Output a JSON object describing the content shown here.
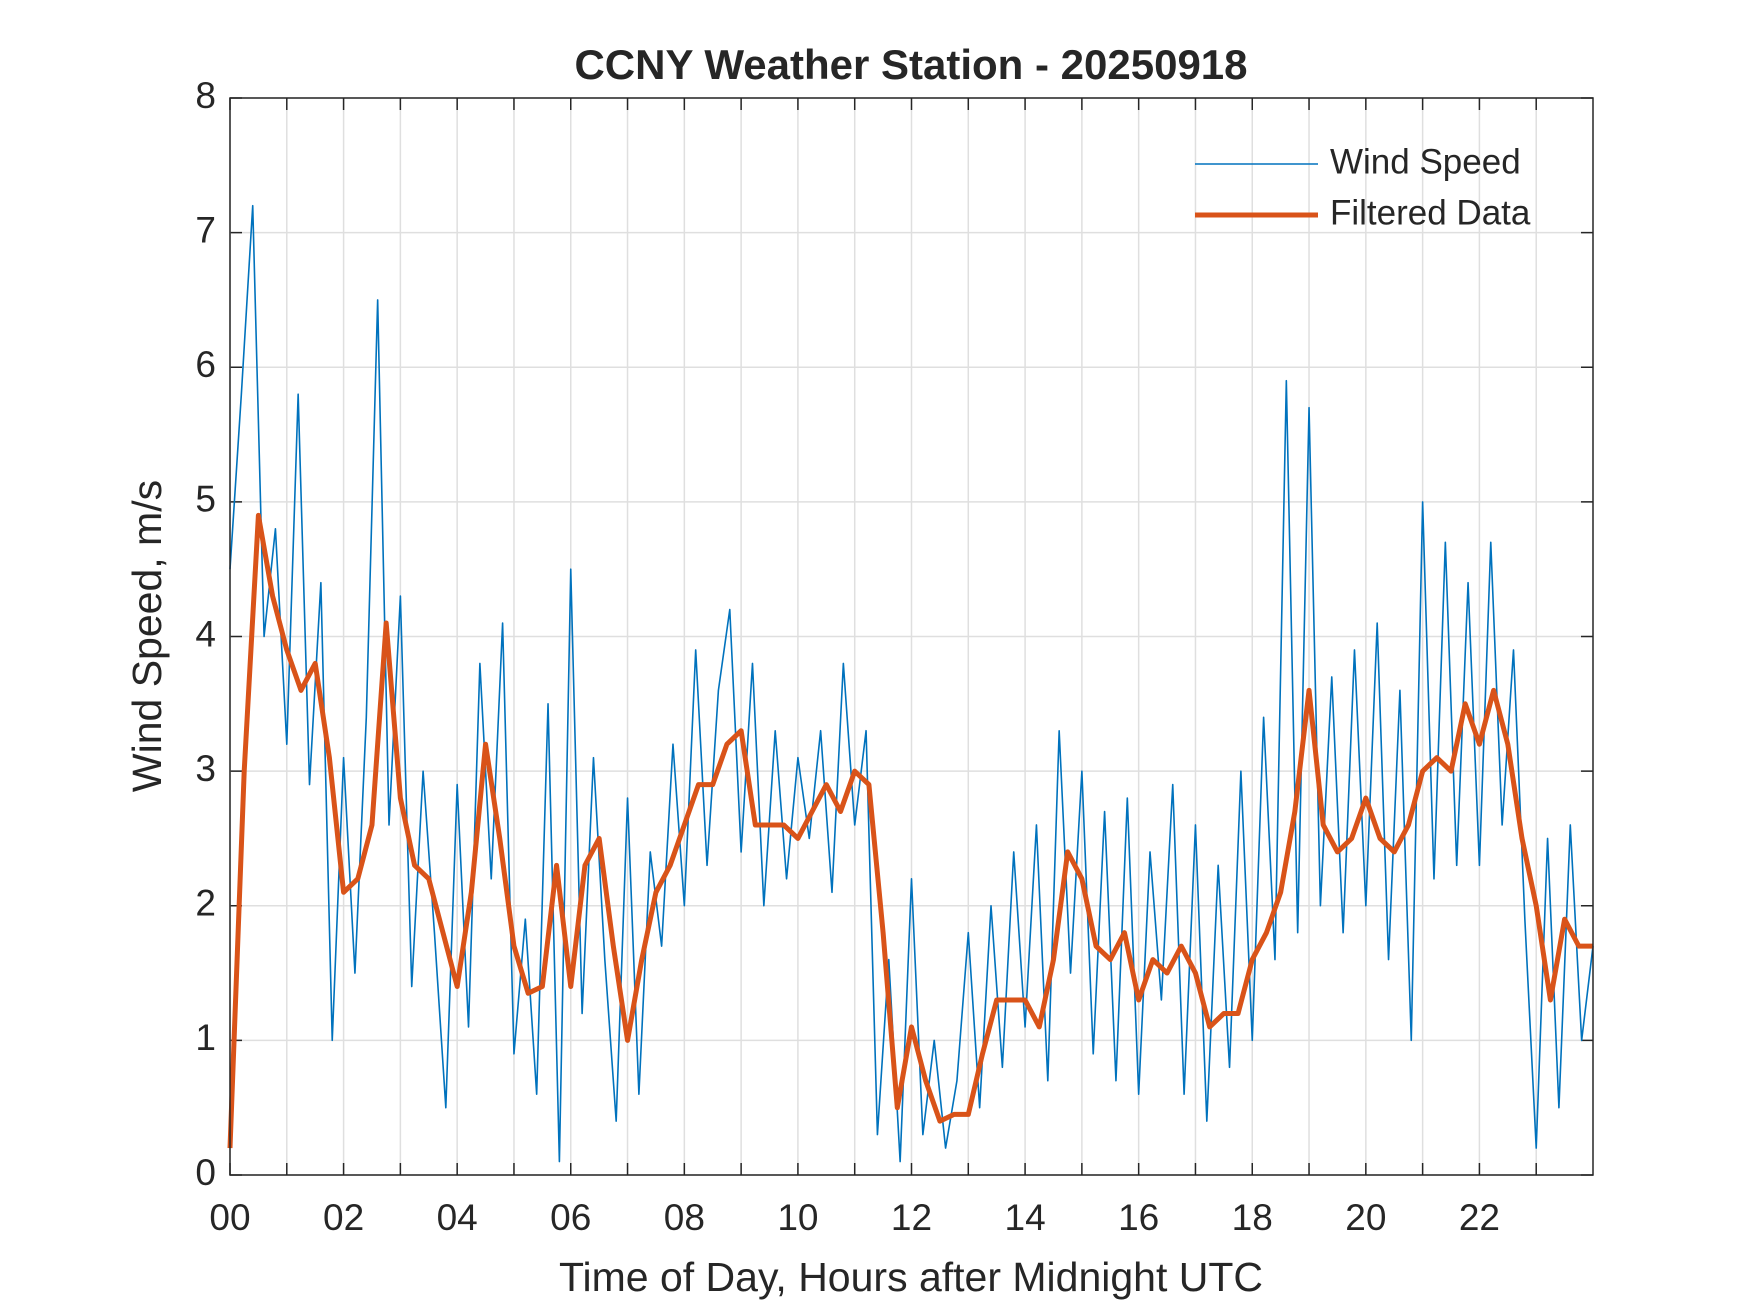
{
  "chart_data": {
    "type": "line",
    "title": "CCNY Weather Station - 20250918",
    "xlabel": "Time of Day, Hours after Midnight UTC",
    "ylabel": "Wind Speed, m/s",
    "xlim": [
      0,
      24
    ],
    "ylim": [
      0,
      8
    ],
    "xticks": [
      {
        "value": 0,
        "label": "00"
      },
      {
        "value": 2,
        "label": "02"
      },
      {
        "value": 4,
        "label": "04"
      },
      {
        "value": 6,
        "label": "06"
      },
      {
        "value": 8,
        "label": "08"
      },
      10,
      12,
      14,
      16,
      18,
      20,
      22
    ],
    "xminorticks": [
      1,
      3,
      5,
      7,
      9,
      11,
      13,
      15,
      17,
      19,
      21,
      23
    ],
    "yticks": [
      0,
      1,
      2,
      3,
      4,
      5,
      6,
      7,
      8
    ],
    "grid": true,
    "legend": "northeast",
    "series": [
      {
        "name": "Wind Speed",
        "color": "#0072BD",
        "x": [
          0,
          0.2,
          0.4,
          0.6,
          0.8,
          1,
          1.2,
          1.4,
          1.6,
          1.8,
          2,
          2.2,
          2.4,
          2.6,
          2.8,
          3,
          3.2,
          3.4,
          3.6,
          3.8,
          4,
          4.2,
          4.4,
          4.6,
          4.8,
          5,
          5.2,
          5.4,
          5.6,
          5.8,
          6,
          6.2,
          6.4,
          6.6,
          6.8,
          7,
          7.2,
          7.4,
          7.6,
          7.8,
          8,
          8.2,
          8.4,
          8.6,
          8.8,
          9,
          9.2,
          9.4,
          9.6,
          9.8,
          10,
          10.2,
          10.4,
          10.6,
          10.8,
          11,
          11.2,
          11.4,
          11.6,
          11.8,
          12,
          12.2,
          12.4,
          12.6,
          12.8,
          13,
          13.2,
          13.4,
          13.6,
          13.8,
          14,
          14.2,
          14.4,
          14.6,
          14.8,
          15,
          15.2,
          15.4,
          15.6,
          15.8,
          16,
          16.2,
          16.4,
          16.6,
          16.8,
          17,
          17.2,
          17.4,
          17.6,
          17.8,
          18,
          18.2,
          18.4,
          18.6,
          18.8,
          19,
          19.2,
          19.4,
          19.6,
          19.8,
          20,
          20.2,
          20.4,
          20.6,
          20.8,
          21,
          21.2,
          21.4,
          21.6,
          21.8,
          22,
          22.2,
          22.4,
          22.6,
          22.8,
          23,
          23.2,
          23.4,
          23.6,
          23.8,
          24
        ],
        "values": [
          4.5,
          5.8,
          7.2,
          4.0,
          4.8,
          3.2,
          5.8,
          2.9,
          4.4,
          1.0,
          3.1,
          1.5,
          3.4,
          6.5,
          2.6,
          4.3,
          1.4,
          3.0,
          1.8,
          0.5,
          2.9,
          1.1,
          3.8,
          2.2,
          4.1,
          0.9,
          1.9,
          0.6,
          3.5,
          0.1,
          4.5,
          1.2,
          3.1,
          1.6,
          0.4,
          2.8,
          0.6,
          2.4,
          1.7,
          3.2,
          2.0,
          3.9,
          2.3,
          3.6,
          4.2,
          2.4,
          3.8,
          2.0,
          3.3,
          2.2,
          3.1,
          2.5,
          3.3,
          2.1,
          3.8,
          2.6,
          3.3,
          0.3,
          1.6,
          0.1,
          2.2,
          0.3,
          1.0,
          0.2,
          0.7,
          1.8,
          0.5,
          2.0,
          0.8,
          2.4,
          1.1,
          2.6,
          0.7,
          3.3,
          1.5,
          3.0,
          0.9,
          2.7,
          0.7,
          2.8,
          0.6,
          2.4,
          1.3,
          2.9,
          0.6,
          2.6,
          0.4,
          2.3,
          0.8,
          3.0,
          1.0,
          3.4,
          1.6,
          5.9,
          1.8,
          5.7,
          2.0,
          3.7,
          1.8,
          3.9,
          2.0,
          4.1,
          1.6,
          3.6,
          1.0,
          5.0,
          2.2,
          4.7,
          2.3,
          4.4,
          2.3,
          4.7,
          2.6,
          3.9,
          1.9,
          0.2,
          2.5,
          0.5,
          2.6,
          1.0,
          1.7
        ]
      },
      {
        "name": "Filtered Data",
        "color": "#D95319",
        "x": [
          0,
          0.25,
          0.5,
          0.75,
          1,
          1.25,
          1.5,
          1.75,
          2,
          2.25,
          2.5,
          2.75,
          3,
          3.25,
          3.5,
          3.75,
          4,
          4.25,
          4.5,
          4.75,
          5,
          5.25,
          5.5,
          5.75,
          6,
          6.25,
          6.5,
          6.75,
          7,
          7.25,
          7.5,
          7.75,
          8,
          8.25,
          8.5,
          8.75,
          9,
          9.25,
          9.5,
          9.75,
          10,
          10.25,
          10.5,
          10.75,
          11,
          11.25,
          11.5,
          11.75,
          12,
          12.25,
          12.5,
          12.75,
          13,
          13.25,
          13.5,
          13.75,
          14,
          14.25,
          14.5,
          14.75,
          15,
          15.25,
          15.5,
          15.75,
          16,
          16.25,
          16.5,
          16.75,
          17,
          17.25,
          17.5,
          17.75,
          18,
          18.25,
          18.5,
          18.75,
          19,
          19.25,
          19.5,
          19.75,
          20,
          20.25,
          20.5,
          20.75,
          21,
          21.25,
          21.5,
          21.75,
          22,
          22.25,
          22.5,
          22.75,
          23,
          23.25,
          23.5,
          23.75,
          24
        ],
        "values": [
          0.2,
          3.0,
          4.9,
          4.3,
          3.9,
          3.6,
          3.8,
          3.1,
          2.1,
          2.2,
          2.6,
          4.1,
          2.8,
          2.3,
          2.2,
          1.8,
          1.4,
          2.1,
          3.2,
          2.5,
          1.7,
          1.35,
          1.4,
          2.3,
          1.4,
          2.3,
          2.5,
          1.7,
          1.0,
          1.6,
          2.1,
          2.3,
          2.6,
          2.9,
          2.9,
          3.2,
          3.3,
          2.6,
          2.6,
          2.6,
          2.5,
          2.7,
          2.9,
          2.7,
          3.0,
          2.9,
          1.8,
          0.5,
          1.1,
          0.7,
          0.4,
          0.45,
          0.45,
          0.9,
          1.3,
          1.3,
          1.3,
          1.1,
          1.6,
          2.4,
          2.2,
          1.7,
          1.6,
          1.8,
          1.3,
          1.6,
          1.5,
          1.7,
          1.5,
          1.1,
          1.2,
          1.2,
          1.6,
          1.8,
          2.1,
          2.7,
          3.6,
          2.6,
          2.4,
          2.5,
          2.8,
          2.5,
          2.4,
          2.6,
          3.0,
          3.1,
          3.0,
          3.5,
          3.2,
          3.6,
          3.2,
          2.5,
          2.0,
          1.3,
          1.9,
          1.7,
          1.7
        ]
      }
    ]
  }
}
